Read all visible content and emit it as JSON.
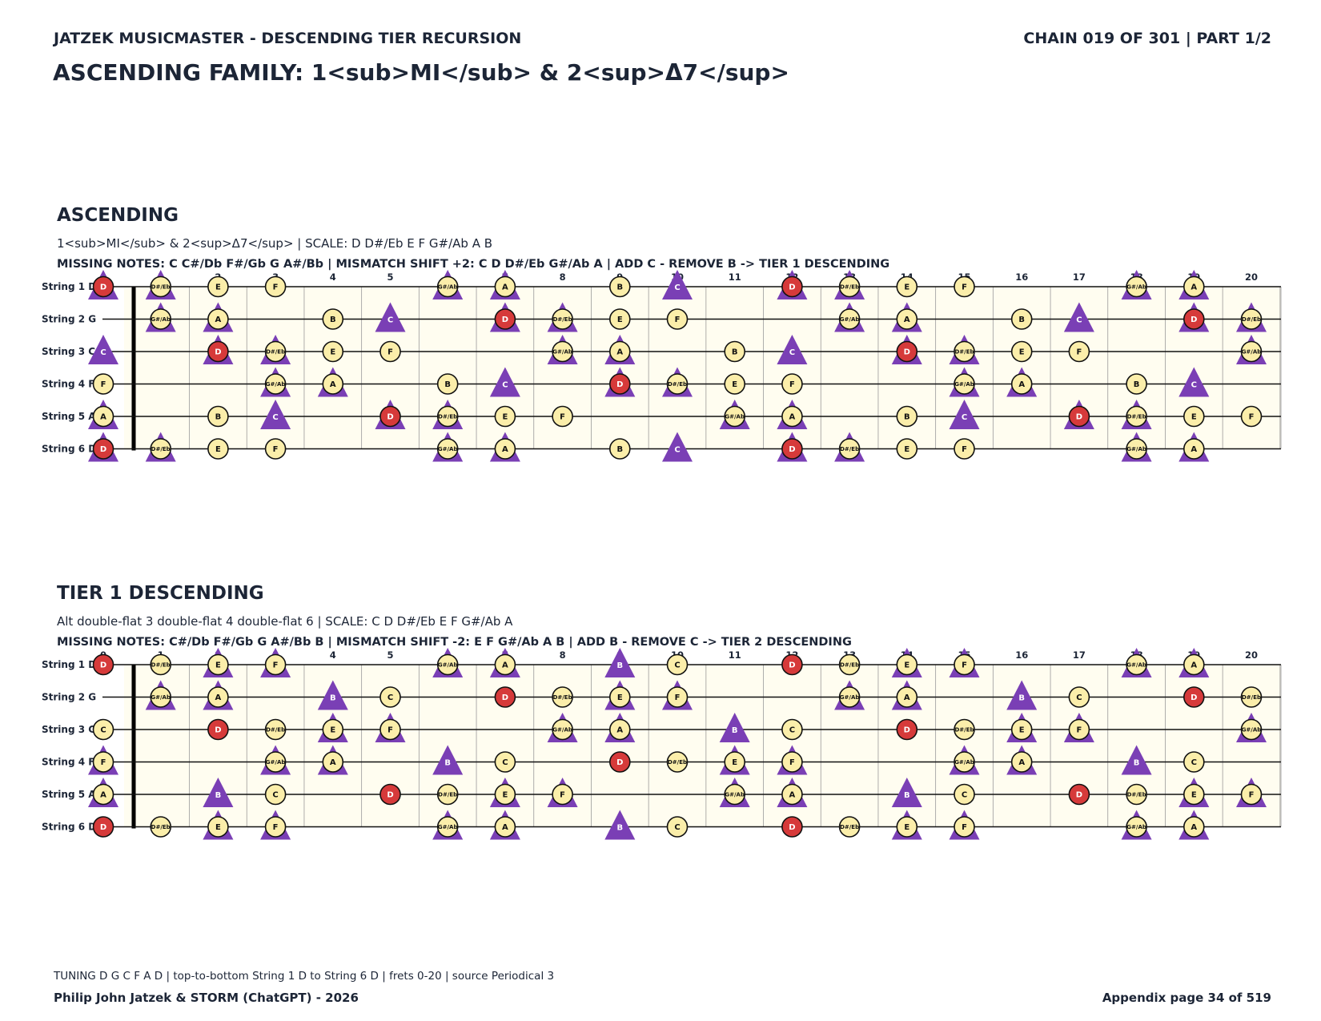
{
  "header": {
    "left": "JATZEK MUSICMASTER - DESCENDING TIER RECURSION",
    "right": "CHAIN 019 OF 301  |  PART 1/2",
    "title": "ASCENDING FAMILY: 1<sub>MI</sub> & 2<sup>Δ7</sup>"
  },
  "fret_numbers": [
    "0",
    "1",
    "2",
    "3",
    "4",
    "5",
    "6",
    "7",
    "8",
    "9",
    "10",
    "11",
    "12",
    "13",
    "14",
    "15",
    "16",
    "17",
    "18",
    "19",
    "20"
  ],
  "legend_colors": {
    "root_fill": "#d63a3a",
    "note_fill": "#fbeeaa",
    "mismatch_triangle": "#7a3fb5",
    "board_fill": "#fffdf0",
    "text": "#1c2536"
  },
  "sections": [
    {
      "title": "ASCENDING",
      "subtitle": "1<sub>MI</sub> & 2<sup>Δ7</sup>  |  SCALE: D D#/Eb E F G#/Ab A B",
      "missing": "MISSING NOTES: C C#/Db F#/Gb G A#/Bb  |  MISMATCH SHIFT +2: C D D#/Eb G#/Ab A  |  ADD C - REMOVE B -> TIER 1 DESCENDING",
      "root": "D",
      "scale": [
        "D",
        "D#/Eb",
        "E",
        "F",
        "G#/Ab",
        "A",
        "B"
      ],
      "mismatch": [
        "C",
        "D",
        "D#/Eb",
        "G#/Ab",
        "A"
      ],
      "strings": [
        {
          "label": "String 1 D",
          "notes": [
            "D",
            "D#/Eb",
            "E",
            "F",
            "",
            "",
            "G#/Ab",
            "A",
            "",
            "B",
            "C",
            "",
            "D",
            "D#/Eb",
            "E",
            "F",
            "",
            "",
            "G#/Ab",
            "A",
            ""
          ]
        },
        {
          "label": "String 2 G",
          "notes": [
            "",
            "G#/Ab",
            "A",
            "",
            "B",
            "C",
            "",
            "D",
            "D#/Eb",
            "E",
            "F",
            "",
            "",
            "G#/Ab",
            "A",
            "",
            "B",
            "C",
            "",
            "D",
            "D#/Eb"
          ]
        },
        {
          "label": "String 3 C",
          "notes": [
            "C",
            "",
            "D",
            "D#/Eb",
            "E",
            "F",
            "",
            "",
            "G#/Ab",
            "A",
            "",
            "B",
            "C",
            "",
            "D",
            "D#/Eb",
            "E",
            "F",
            "",
            "",
            "G#/Ab"
          ]
        },
        {
          "label": "String 4 F",
          "notes": [
            "F",
            "",
            "",
            "G#/Ab",
            "A",
            "",
            "B",
            "C",
            "",
            "D",
            "D#/Eb",
            "E",
            "F",
            "",
            "",
            "G#/Ab",
            "A",
            "",
            "B",
            "C",
            ""
          ]
        },
        {
          "label": "String 5 A",
          "notes": [
            "A",
            "",
            "B",
            "C",
            "",
            "D",
            "D#/Eb",
            "E",
            "F",
            "",
            "",
            "G#/Ab",
            "A",
            "",
            "B",
            "C",
            "",
            "D",
            "D#/Eb",
            "E",
            "F"
          ]
        },
        {
          "label": "String 6 D",
          "notes": [
            "D",
            "D#/Eb",
            "E",
            "F",
            "",
            "",
            "G#/Ab",
            "A",
            "",
            "B",
            "C",
            "",
            "D",
            "D#/Eb",
            "E",
            "F",
            "",
            "",
            "G#/Ab",
            "A",
            ""
          ]
        }
      ]
    },
    {
      "title": "TIER 1 DESCENDING",
      "subtitle": "Alt double-flat 3 double-flat 4 double-flat 6  |  SCALE: C D D#/Eb E F G#/Ab A",
      "missing": "MISSING NOTES: C#/Db F#/Gb G A#/Bb B  |  MISMATCH SHIFT -2: E F G#/Ab A B  |  ADD B - REMOVE C -> TIER 2 DESCENDING",
      "root": "D",
      "scale": [
        "C",
        "D",
        "D#/Eb",
        "E",
        "F",
        "G#/Ab",
        "A"
      ],
      "mismatch": [
        "E",
        "F",
        "G#/Ab",
        "A",
        "B"
      ],
      "strings": [
        {
          "label": "String 1 D",
          "notes": [
            "D",
            "D#/Eb",
            "E",
            "F",
            "",
            "",
            "G#/Ab",
            "A",
            "",
            "B",
            "C",
            "",
            "D",
            "D#/Eb",
            "E",
            "F",
            "",
            "",
            "G#/Ab",
            "A",
            ""
          ]
        },
        {
          "label": "String 2 G",
          "notes": [
            "",
            "G#/Ab",
            "A",
            "",
            "B",
            "C",
            "",
            "D",
            "D#/Eb",
            "E",
            "F",
            "",
            "",
            "G#/Ab",
            "A",
            "",
            "B",
            "C",
            "",
            "D",
            "D#/Eb"
          ]
        },
        {
          "label": "String 3 C",
          "notes": [
            "C",
            "",
            "D",
            "D#/Eb",
            "E",
            "F",
            "",
            "",
            "G#/Ab",
            "A",
            "",
            "B",
            "C",
            "",
            "D",
            "D#/Eb",
            "E",
            "F",
            "",
            "",
            "G#/Ab"
          ]
        },
        {
          "label": "String 4 F",
          "notes": [
            "F",
            "",
            "",
            "G#/Ab",
            "A",
            "",
            "B",
            "C",
            "",
            "D",
            "D#/Eb",
            "E",
            "F",
            "",
            "",
            "G#/Ab",
            "A",
            "",
            "B",
            "C",
            ""
          ]
        },
        {
          "label": "String 5 A",
          "notes": [
            "A",
            "",
            "B",
            "C",
            "",
            "D",
            "D#/Eb",
            "E",
            "F",
            "",
            "",
            "G#/Ab",
            "A",
            "",
            "B",
            "C",
            "",
            "D",
            "D#/Eb",
            "E",
            "F"
          ]
        },
        {
          "label": "String 6 D",
          "notes": [
            "D",
            "D#/Eb",
            "E",
            "F",
            "",
            "",
            "G#/Ab",
            "A",
            "",
            "B",
            "C",
            "",
            "D",
            "D#/Eb",
            "E",
            "F",
            "",
            "",
            "G#/Ab",
            "A",
            ""
          ]
        }
      ]
    }
  ],
  "footer": {
    "tuning": "TUNING D G C F A D | top-to-bottom String 1 D to String 6 D | frets 0-20 | source Periodical 3",
    "authors": "Philip John Jatzek & STORM (ChatGPT) - 2026",
    "page": "Appendix page 34 of 519"
  }
}
